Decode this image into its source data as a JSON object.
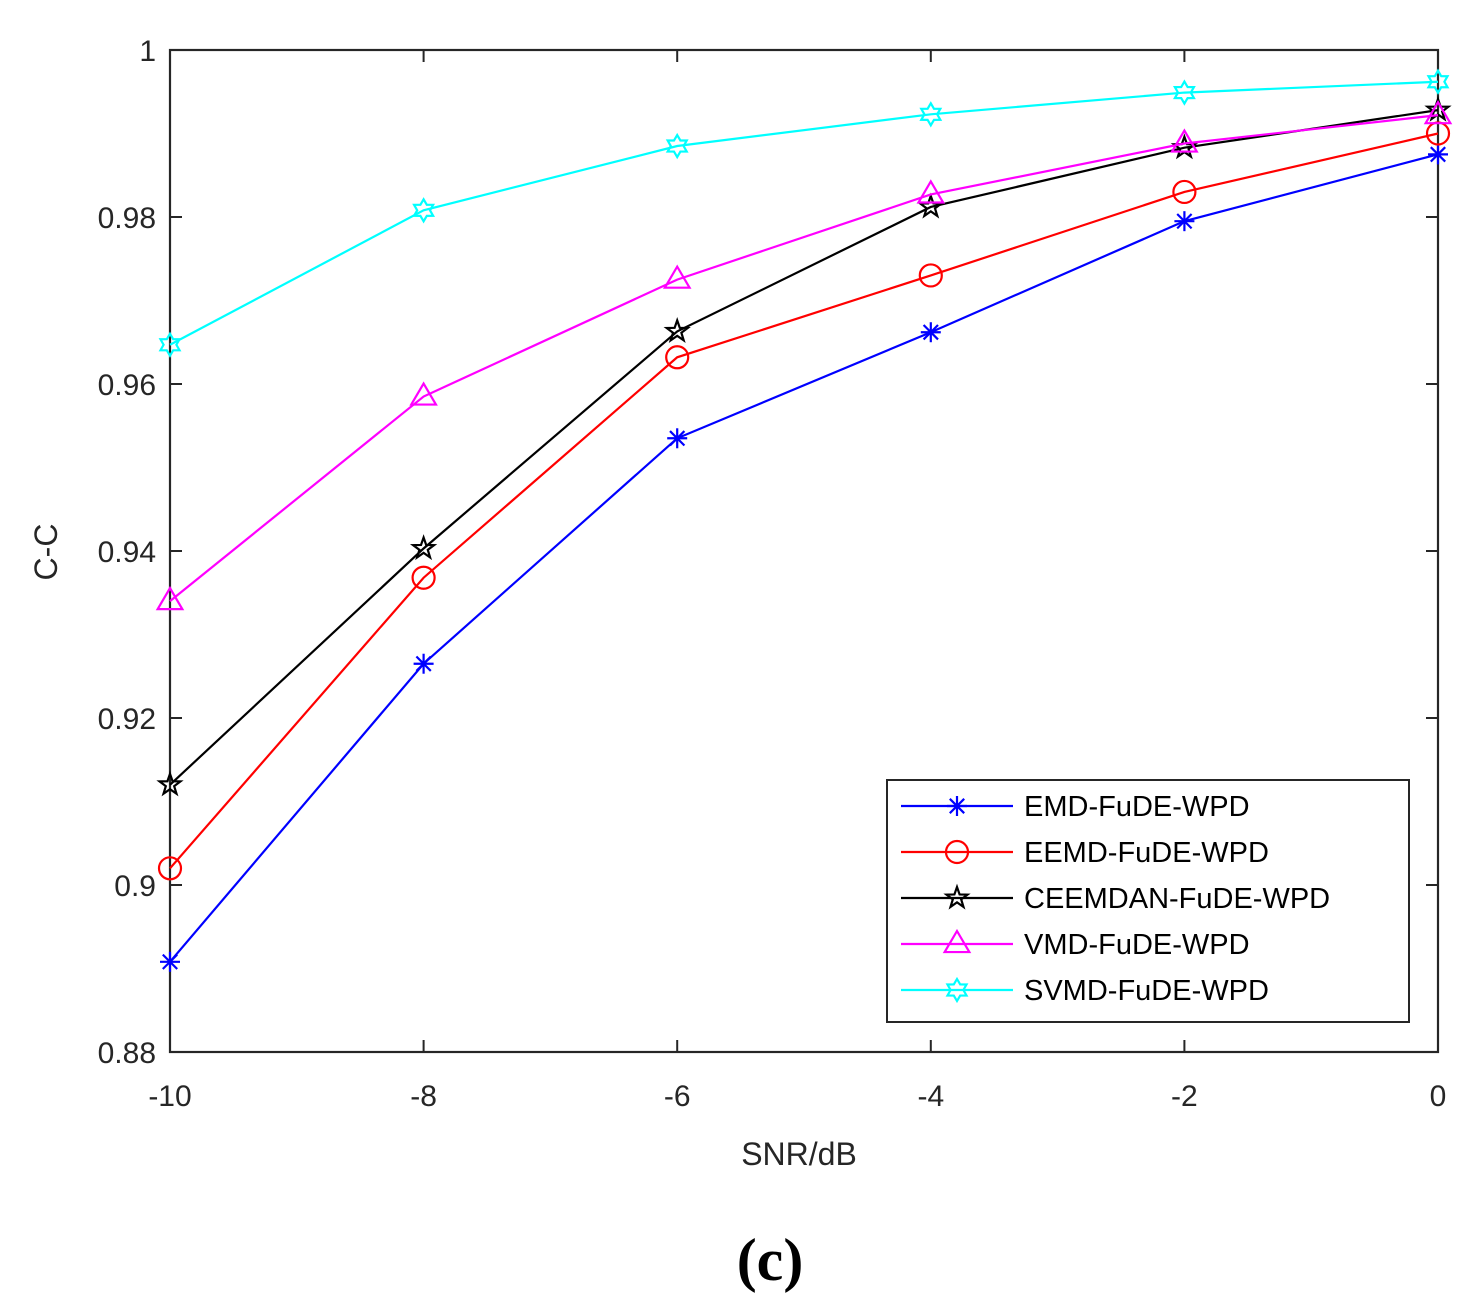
{
  "chart_data": {
    "type": "line",
    "title": "",
    "xlabel": "SNR/dB",
    "ylabel": "C-C",
    "x": [
      -10,
      -8,
      -6,
      -4,
      -2,
      0
    ],
    "xlim": [
      -10,
      0
    ],
    "ylim": [
      0.88,
      1.0
    ],
    "xticks": [
      -10,
      -8,
      -6,
      -4,
      -2,
      0
    ],
    "xtick_labels": [
      "-10",
      "-8",
      "-6",
      "-4",
      "-2",
      "0"
    ],
    "yticks": [
      0.88,
      0.9,
      0.92,
      0.94,
      0.96,
      0.98,
      1.0
    ],
    "ytick_labels": [
      "0.88",
      "0.9",
      "0.92",
      "0.94",
      "0.96",
      "0.98",
      "1"
    ],
    "grid": false,
    "legend_position": "bottom-right",
    "series": [
      {
        "name": "EMD-FuDE-WPD",
        "color": "#0000ff",
        "marker": "asterisk",
        "values": [
          0.8908,
          0.9265,
          0.9535,
          0.9662,
          0.9795,
          0.9875
        ]
      },
      {
        "name": "EEMD-FuDE-WPD",
        "color": "#ff0000",
        "marker": "circle",
        "values": [
          0.902,
          0.9368,
          0.9632,
          0.973,
          0.983,
          0.99
        ]
      },
      {
        "name": "CEEMDAN-FuDE-WPD",
        "color": "#000000",
        "marker": "pentagram",
        "values": [
          0.912,
          0.9403,
          0.9663,
          0.9812,
          0.9883,
          0.9928
        ]
      },
      {
        "name": "VMD-FuDE-WPD",
        "color": "#ff00ff",
        "marker": "triangle",
        "values": [
          0.934,
          0.9585,
          0.9725,
          0.9827,
          0.9888,
          0.9922
        ]
      },
      {
        "name": "SVMD-FuDE-WPD",
        "color": "#00ffff",
        "marker": "hexagram",
        "values": [
          0.9647,
          0.9808,
          0.9885,
          0.9923,
          0.9949,
          0.9962
        ]
      }
    ]
  },
  "panel_label": "(c)"
}
